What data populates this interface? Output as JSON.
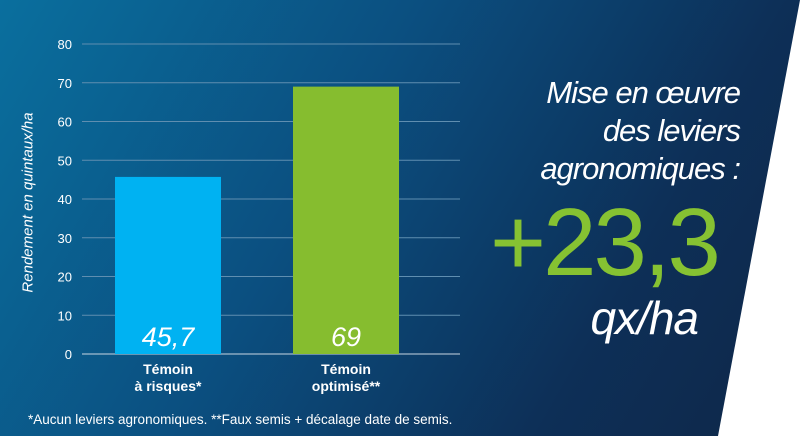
{
  "chart_data": {
    "type": "bar",
    "categories": [
      [
        "Témoin",
        "à risques*"
      ],
      [
        "Témoin",
        "optimisé**"
      ]
    ],
    "values": [
      45.7,
      69
    ],
    "value_labels": [
      "45,7",
      "69"
    ],
    "bar_colors": [
      "#00b2f2",
      "#86bd2f"
    ],
    "ylabel": "Rendement en quintaux/ha",
    "ylim": [
      0,
      80
    ],
    "yticks": [
      0,
      10,
      20,
      30,
      40,
      50,
      60,
      70,
      80
    ],
    "grid": true
  },
  "headline": {
    "lines": [
      "Mise en œuvre",
      "des leviers",
      "agronomiques :"
    ],
    "gain": "+23,3",
    "unit": "qx/ha"
  },
  "footnote": "*Aucun leviers agronomiques. **Faux semis + décalage date de semis.",
  "colors": {
    "accent_green": "#86c232",
    "bar_blue": "#00b2f2",
    "bar_green": "#86bd2f",
    "background_dark": "#0d2f57"
  }
}
